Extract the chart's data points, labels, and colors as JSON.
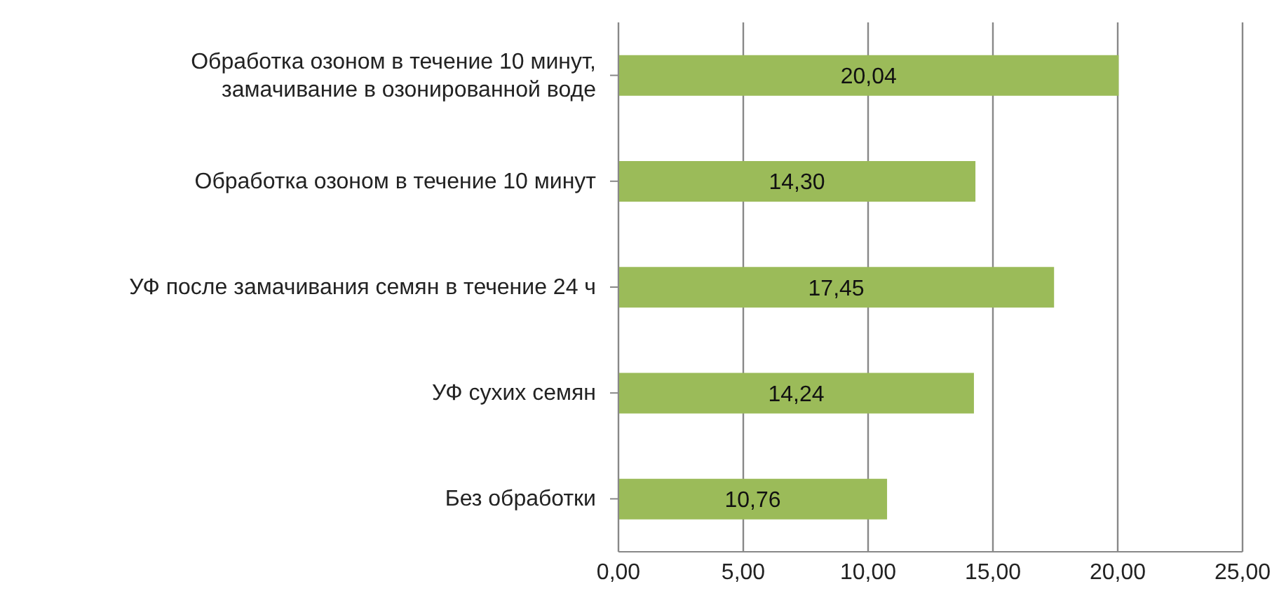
{
  "chart_data": {
    "type": "bar",
    "orientation": "horizontal",
    "categories": [
      "Обработка озоном в течение 10 минут, замачивание в озонированной воде",
      "Обработка озоном в течение 10 минут",
      "УФ после замачивания семян в течение 24 ч",
      "УФ сухих семян",
      "Без обработки"
    ],
    "values": [
      20.04,
      14.3,
      17.45,
      14.24,
      10.76
    ],
    "value_labels": [
      "20,04",
      "14,30",
      "17,45",
      "14,24",
      "10,76"
    ],
    "color": "#9bbb59",
    "xlim": [
      0,
      25
    ],
    "xticks": [
      {
        "value": 0,
        "label": "0,00"
      },
      {
        "value": 5,
        "label": "5,00"
      },
      {
        "value": 10,
        "label": "10,00"
      },
      {
        "value": 15,
        "label": "15,00"
      },
      {
        "value": 20,
        "label": "20,00"
      },
      {
        "value": 25,
        "label": "25,00"
      }
    ],
    "grid": "x"
  }
}
